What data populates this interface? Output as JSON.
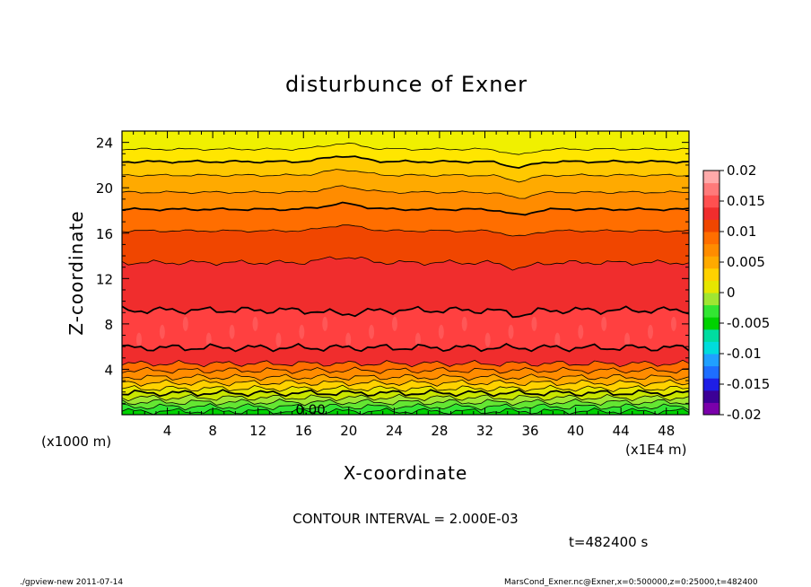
{
  "chart_data": {
    "type": "heatmap",
    "title": "disturbunce of Exner",
    "xlabel": "X-coordinate",
    "ylabel": "Z-coordinate",
    "x_unit": "(x1E4 m)",
    "y_unit": "(x1000 m)",
    "xlim": [
      0,
      50
    ],
    "ylim": [
      0,
      25
    ],
    "x_ticks": [
      "4",
      "8",
      "12",
      "16",
      "20",
      "24",
      "28",
      "32",
      "36",
      "40",
      "44",
      "48"
    ],
    "y_ticks": [
      "4",
      "8",
      "12",
      "16",
      "20",
      "24"
    ],
    "contour_interval_text": "CONTOUR INTERVAL = 2.000E-03",
    "contour_label": "0.00",
    "time_text": "t=482400 s",
    "colorbar": {
      "range": [
        -0.02,
        0.02
      ],
      "tick_labels": [
        "0.02",
        "0.015",
        "0.01",
        "0.005",
        "0",
        "-0.005",
        "-0.01",
        "-0.015",
        "-0.02"
      ],
      "colors": [
        "#7a00aa",
        "#3c0096",
        "#1e1ee6",
        "#1e6eff",
        "#20a0ff",
        "#00dcdc",
        "#00dca0",
        "#00d200",
        "#32e632",
        "#a0e632",
        "#e6e600",
        "#ffd200",
        "#ffaa00",
        "#ff8c00",
        "#ff6e00",
        "#f04600",
        "#f02d2d",
        "#ff5050",
        "#ff7a7a",
        "#ffaaaa"
      ]
    },
    "band_boundaries_z": [
      0.3,
      0.7,
      1.1,
      1.5,
      1.9,
      2.3,
      2.8,
      3.3,
      3.9,
      4.5,
      5.9,
      9.2,
      13.4,
      16.2,
      18.1,
      19.6,
      21.1,
      22.3,
      23.4
    ],
    "band_colors_bottom_to_top": [
      "#00d200",
      "#32e632",
      "#64e632",
      "#a0e632",
      "#c8e600",
      "#e6e600",
      "#ffd200",
      "#ffaa00",
      "#ff8c00",
      "#ff6e00",
      "#f02d2d",
      "#ff4040",
      "#f02d2d",
      "#f04600",
      "#ff6e00",
      "#ff8c00",
      "#ffaa00",
      "#ffc800",
      "#ffe600",
      "#f0f000"
    ],
    "value_range": [
      0.0,
      0.02
    ]
  },
  "footer": {
    "left": "./gpview-new  2011-07-14",
    "right": "MarsCond_Exner.nc@Exner,x=0:500000,z=0:25000,t=482400"
  }
}
